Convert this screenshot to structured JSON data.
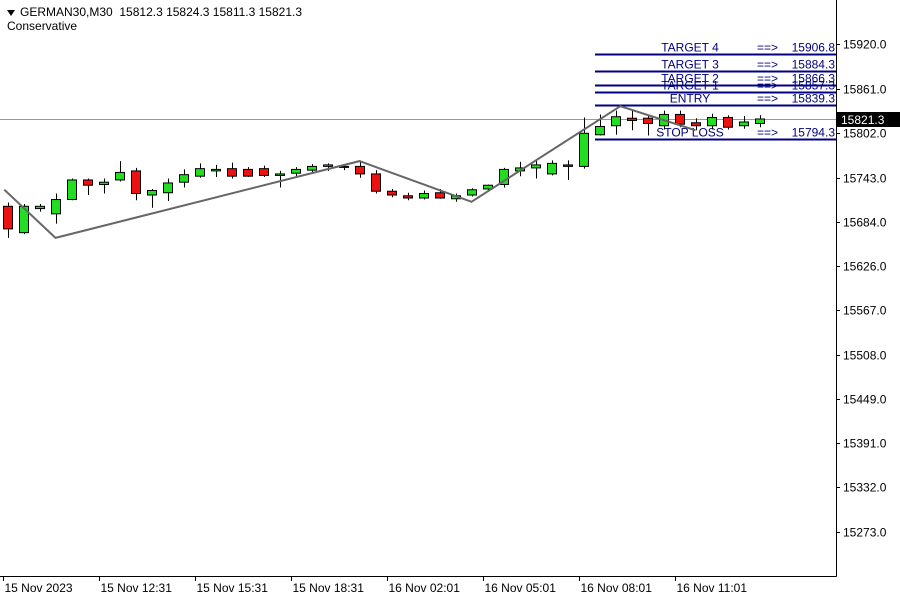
{
  "header": {
    "symbol": "GERMAN30,M30",
    "ohlc": "15812.3 15824.3 15811.3 15821.3",
    "strategy": "Conservative"
  },
  "colors": {
    "bull": "#22dd22",
    "bear": "#ee1111",
    "level_line": "#000080",
    "level_text": "#000080",
    "zigzag": "#666666",
    "price_line": "#999999",
    "price_tag_bg": "#000000",
    "price_tag_fg": "#ffffff"
  },
  "chart_data": {
    "type": "candlestick",
    "title": "GERMAN30,M30",
    "ylim": [
      15214,
      15979
    ],
    "y_ticks": [
      "15920.0",
      "15861.0",
      "15802.0",
      "15743.0",
      "15684.0",
      "15626.0",
      "15567.0",
      "15508.0",
      "15449.0",
      "15391.0",
      "15332.0",
      "15273.0"
    ],
    "x_ticks": [
      {
        "bar": 0,
        "label": "15 Nov 2023"
      },
      {
        "bar": 6,
        "label": "15 Nov 12:31"
      },
      {
        "bar": 12,
        "label": "15 Nov 15:31"
      },
      {
        "bar": 18,
        "label": "15 Nov 18:31"
      },
      {
        "bar": 24,
        "label": "16 Nov 02:01"
      },
      {
        "bar": 30,
        "label": "16 Nov 05:01"
      },
      {
        "bar": 36,
        "label": "16 Nov 08:01"
      },
      {
        "bar": 42,
        "label": "16 Nov 11:01"
      }
    ],
    "candles": [
      {
        "o": 15705,
        "h": 15710,
        "l": 15663,
        "c": 15675
      },
      {
        "o": 15670,
        "h": 15708,
        "l": 15668,
        "c": 15705
      },
      {
        "o": 15702,
        "h": 15708,
        "l": 15698,
        "c": 15705
      },
      {
        "o": 15695,
        "h": 15722,
        "l": 15682,
        "c": 15714
      },
      {
        "o": 15714,
        "h": 15742,
        "l": 15713,
        "c": 15740
      },
      {
        "o": 15740,
        "h": 15742,
        "l": 15720,
        "c": 15733
      },
      {
        "o": 15734,
        "h": 15742,
        "l": 15722,
        "c": 15737
      },
      {
        "o": 15740,
        "h": 15765,
        "l": 15738,
        "c": 15750
      },
      {
        "o": 15752,
        "h": 15756,
        "l": 15713,
        "c": 15722
      },
      {
        "o": 15720,
        "h": 15728,
        "l": 15703,
        "c": 15726
      },
      {
        "o": 15723,
        "h": 15742,
        "l": 15712,
        "c": 15736
      },
      {
        "o": 15737,
        "h": 15754,
        "l": 15730,
        "c": 15747
      },
      {
        "o": 15745,
        "h": 15762,
        "l": 15743,
        "c": 15755
      },
      {
        "o": 15752,
        "h": 15760,
        "l": 15744,
        "c": 15754
      },
      {
        "o": 15755,
        "h": 15763,
        "l": 15742,
        "c": 15745
      },
      {
        "o": 15754,
        "h": 15757,
        "l": 15744,
        "c": 15745
      },
      {
        "o": 15755,
        "h": 15759,
        "l": 15744,
        "c": 15746
      },
      {
        "o": 15746,
        "h": 15752,
        "l": 15730,
        "c": 15748
      },
      {
        "o": 15749,
        "h": 15757,
        "l": 15745,
        "c": 15754
      },
      {
        "o": 15753,
        "h": 15761,
        "l": 15748,
        "c": 15758
      },
      {
        "o": 15758,
        "h": 15762,
        "l": 15752,
        "c": 15760
      },
      {
        "o": 15758,
        "h": 15761,
        "l": 15753,
        "c": 15758
      },
      {
        "o": 15758,
        "h": 15765,
        "l": 15743,
        "c": 15748
      },
      {
        "o": 15748,
        "h": 15753,
        "l": 15722,
        "c": 15725
      },
      {
        "o": 15725,
        "h": 15728,
        "l": 15717,
        "c": 15720
      },
      {
        "o": 15719,
        "h": 15723,
        "l": 15713,
        "c": 15716
      },
      {
        "o": 15716,
        "h": 15726,
        "l": 15714,
        "c": 15722
      },
      {
        "o": 15723,
        "h": 15728,
        "l": 15715,
        "c": 15716
      },
      {
        "o": 15715,
        "h": 15722,
        "l": 15711,
        "c": 15719
      },
      {
        "o": 15720,
        "h": 15729,
        "l": 15718,
        "c": 15727
      },
      {
        "o": 15728,
        "h": 15734,
        "l": 15725,
        "c": 15733
      },
      {
        "o": 15734,
        "h": 15756,
        "l": 15730,
        "c": 15754
      },
      {
        "o": 15752,
        "h": 15764,
        "l": 15745,
        "c": 15756
      },
      {
        "o": 15756,
        "h": 15766,
        "l": 15742,
        "c": 15760
      },
      {
        "o": 15748,
        "h": 15766,
        "l": 15746,
        "c": 15762
      },
      {
        "o": 15760,
        "h": 15766,
        "l": 15740,
        "c": 15758
      },
      {
        "o": 15758,
        "h": 15823,
        "l": 15755,
        "c": 15802
      },
      {
        "o": 15800,
        "h": 15827,
        "l": 15799,
        "c": 15811
      },
      {
        "o": 15812,
        "h": 15832,
        "l": 15800,
        "c": 15824
      },
      {
        "o": 15822,
        "h": 15833,
        "l": 15806,
        "c": 15819
      },
      {
        "o": 15822,
        "h": 15826,
        "l": 15799,
        "c": 15815
      },
      {
        "o": 15812,
        "h": 15832,
        "l": 15807,
        "c": 15827
      },
      {
        "o": 15827,
        "h": 15832,
        "l": 15810,
        "c": 15814
      },
      {
        "o": 15816,
        "h": 15822,
        "l": 15806,
        "c": 15812
      },
      {
        "o": 15812,
        "h": 15828,
        "l": 15807,
        "c": 15823
      },
      {
        "o": 15823,
        "h": 15826,
        "l": 15807,
        "c": 15810
      },
      {
        "o": 15812,
        "h": 15825,
        "l": 15808,
        "c": 15817
      },
      {
        "o": 15815,
        "h": 15826,
        "l": 15810,
        "c": 15821
      }
    ],
    "zigzag": [
      {
        "bar": -0.2,
        "price": 15727
      },
      {
        "bar": 3,
        "price": 15663
      },
      {
        "bar": 22,
        "price": 15765
      },
      {
        "bar": 29,
        "price": 15711
      },
      {
        "bar": 38.3,
        "price": 15838
      },
      {
        "bar": 43,
        "price": 15806
      }
    ],
    "levels": [
      {
        "name": "TARGET 4",
        "arrow": "==>",
        "value": "15906.8",
        "price": 15906.8
      },
      {
        "name": "TARGET 3",
        "arrow": "==>",
        "value": "15884.3",
        "price": 15884.3
      },
      {
        "name": "TARGET 2",
        "arrow": "==>",
        "value": "15866.3",
        "price": 15866.3
      },
      {
        "name": "TARGET 1",
        "arrow": "==>",
        "value": "15857.3",
        "price": 15857.3
      },
      {
        "name": "ENTRY",
        "arrow": "==>",
        "value": "15839.3",
        "price": 15839.3
      },
      {
        "name": "STOP LOSS",
        "arrow": "==>",
        "value": "15794.3",
        "price": 15794.3
      }
    ],
    "current_price": {
      "value": 15821.3,
      "label": "15821.3"
    }
  }
}
